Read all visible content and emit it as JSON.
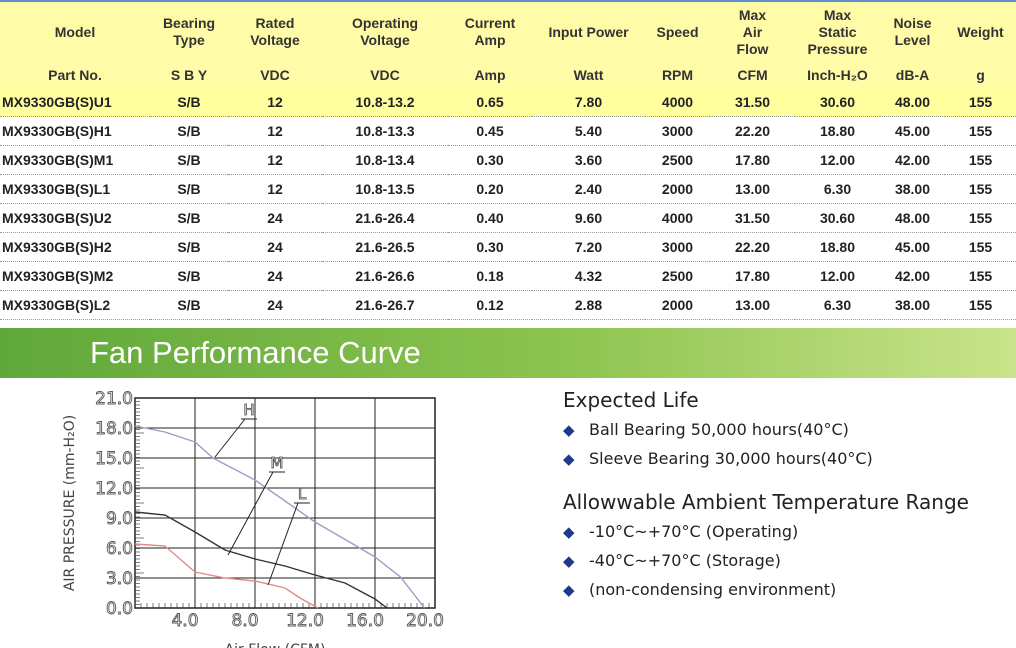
{
  "table": {
    "header": [
      "Model",
      "Bearing\nType",
      "Rated\nVoltage",
      "Operating\nVoltage",
      "Current\nAmp",
      "Input Power",
      "Speed",
      "Max\nAir\nFlow",
      "Max\nStatic\nPressure",
      "Noise\nLevel",
      "Weight"
    ],
    "units": [
      "Part No.",
      "S B Y",
      "VDC",
      "VDC",
      "Amp",
      "Watt",
      "RPM",
      "CFM",
      "Inch-H₂O",
      "dB-A",
      "g"
    ],
    "rows": [
      [
        "MX9330GB(S)U1",
        "S/B",
        "12",
        "10.8-13.2",
        "0.65",
        "7.80",
        "4000",
        "31.50",
        "30.60",
        "48.00",
        "155"
      ],
      [
        "MX9330GB(S)H1",
        "S/B",
        "12",
        "10.8-13.3",
        "0.45",
        "5.40",
        "3000",
        "22.20",
        "18.80",
        "45.00",
        "155"
      ],
      [
        "MX9330GB(S)M1",
        "S/B",
        "12",
        "10.8-13.4",
        "0.30",
        "3.60",
        "2500",
        "17.80",
        "12.00",
        "42.00",
        "155"
      ],
      [
        "MX9330GB(S)L1",
        "S/B",
        "12",
        "10.8-13.5",
        "0.20",
        "2.40",
        "2000",
        "13.00",
        "6.30",
        "38.00",
        "155"
      ],
      [
        "MX9330GB(S)U2",
        "S/B",
        "24",
        "21.6-26.4",
        "0.40",
        "9.60",
        "4000",
        "31.50",
        "30.60",
        "48.00",
        "155"
      ],
      [
        "MX9330GB(S)H2",
        "S/B",
        "24",
        "21.6-26.5",
        "0.30",
        "7.20",
        "3000",
        "22.20",
        "18.80",
        "45.00",
        "155"
      ],
      [
        "MX9330GB(S)M2",
        "S/B",
        "24",
        "21.6-26.6",
        "0.18",
        "4.32",
        "2500",
        "17.80",
        "12.00",
        "42.00",
        "155"
      ],
      [
        "MX9330GB(S)L2",
        "S/B",
        "24",
        "21.6-26.7",
        "0.12",
        "2.88",
        "2000",
        "13.00",
        "6.30",
        "38.00",
        "155"
      ]
    ]
  },
  "section_title": "Fan Performance Curve",
  "chart_data": {
    "type": "line",
    "xlabel": "Air Flow (CFM)",
    "ylabel": "AIR PRESSURE (mm-H₂O)",
    "xlim": [
      0,
      20
    ],
    "ylim": [
      0,
      21
    ],
    "xticks": [
      {
        "value": 4,
        "label": "4.0"
      },
      {
        "value": 8,
        "label": "8.0"
      },
      {
        "value": 12,
        "label": "12.0"
      },
      {
        "value": 16,
        "label": "16.0"
      },
      {
        "value": 20,
        "label": "20.0"
      }
    ],
    "yticks": [
      {
        "value": 0,
        "label": "0.0"
      },
      {
        "value": 3,
        "label": "3.0"
      },
      {
        "value": 6,
        "label": "6.0"
      },
      {
        "value": 9,
        "label": "9.0"
      },
      {
        "value": 12,
        "label": "12.0"
      },
      {
        "value": 15,
        "label": "15.0"
      },
      {
        "value": 18,
        "label": "18.0"
      },
      {
        "value": 21,
        "label": "21.0"
      }
    ],
    "grid": true,
    "series": [
      {
        "name": "H",
        "color": "#9a9fc4",
        "x": [
          0,
          2,
          4,
          5.2,
          8,
          10,
          12,
          14.3,
          16,
          17.7,
          19.3
        ],
        "values": [
          18.2,
          17.6,
          16.6,
          15.0,
          12.8,
          10.7,
          8.6,
          6.6,
          5.1,
          3.1,
          0
        ]
      },
      {
        "name": "M",
        "color": "#333333",
        "x": [
          0,
          2,
          4,
          6,
          8,
          10,
          12,
          14,
          16,
          16.8
        ],
        "values": [
          9.6,
          9.3,
          7.6,
          5.8,
          4.9,
          4.2,
          3.3,
          2.5,
          0.9,
          0
        ]
      },
      {
        "name": "L",
        "color": "#e08a8a",
        "x": [
          0,
          2,
          4,
          6,
          8,
          10,
          11,
          12.2
        ],
        "values": [
          6.4,
          6.2,
          3.6,
          3.0,
          2.7,
          2.0,
          1.0,
          0
        ]
      }
    ]
  },
  "notes": [
    {
      "heading": "Expected Life",
      "items": [
        "Ball Bearing 50,000 hours(40°C)",
        "Sleeve Bearing 30,000 hours(40°C)"
      ]
    },
    {
      "heading": "Allowwable Ambient Temperature Range",
      "items": [
        "-10°C~+70°C (Operating)",
        "-40°C~+70°C (Storage)",
        "(non-condensing environment)"
      ]
    }
  ]
}
